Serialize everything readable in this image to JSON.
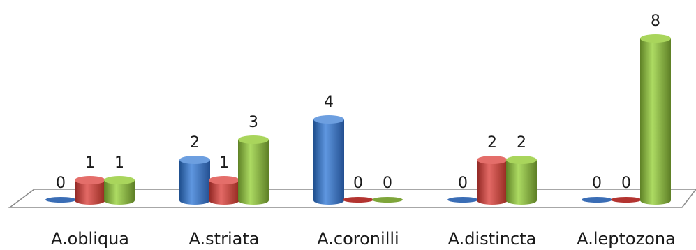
{
  "chart_data": {
    "type": "bar",
    "style": "3d-cylinder",
    "categories": [
      "A.obliqua",
      "A.striata",
      "A.coronilli",
      "A.distincta",
      "A.leptozona"
    ],
    "series": [
      {
        "values": [
          0,
          2,
          4,
          0,
          0
        ],
        "color": "#3f78c2"
      },
      {
        "values": [
          1,
          1,
          0,
          2,
          0
        ],
        "color": "#c64440"
      },
      {
        "values": [
          1,
          3,
          0,
          2,
          8
        ],
        "color": "#8db445"
      }
    ],
    "data_labels": true,
    "grid": false,
    "legend": "none",
    "ylim": [
      0,
      8
    ]
  }
}
